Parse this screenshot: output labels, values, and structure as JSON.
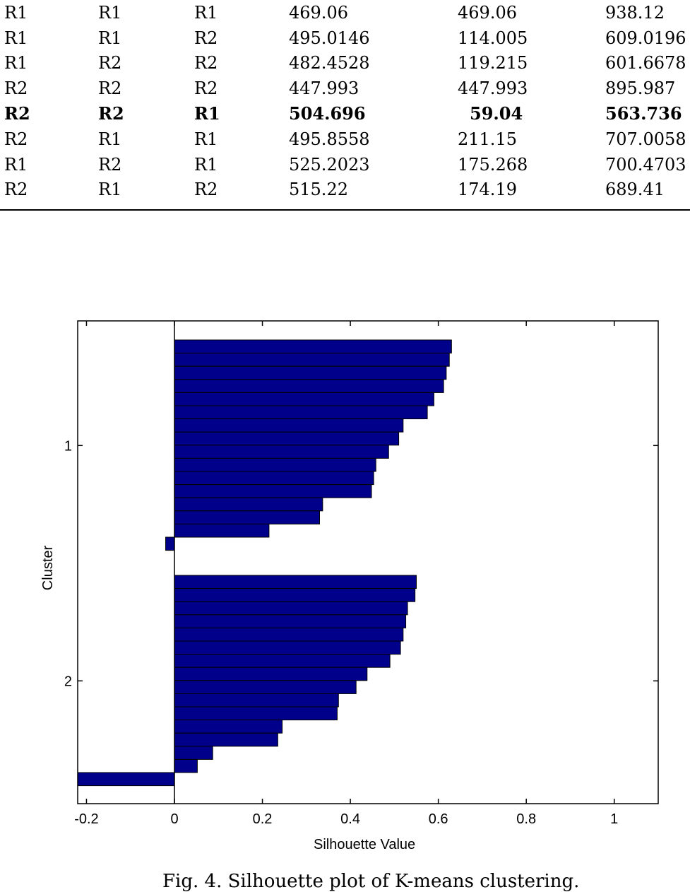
{
  "table": {
    "rows": [
      [
        "R1",
        "R1",
        "R1",
        "469.06",
        "469.06",
        "938.12"
      ],
      [
        "R1",
        "R1",
        "R2",
        "495.0146",
        "114.005",
        "609.0196"
      ],
      [
        "R1",
        "R2",
        "R2",
        "482.4528",
        "119.215",
        "601.6678"
      ],
      [
        "R2",
        "R2",
        "R2",
        "447.993",
        "447.993",
        "895.987"
      ],
      [
        "R2",
        "R2",
        "R1",
        "504.696",
        "59.04",
        "563.736"
      ],
      [
        "R2",
        "R1",
        "R1",
        "495.8558",
        "211.15",
        "707.0058"
      ],
      [
        "R1",
        "R2",
        "R1",
        "525.2023",
        "175.268",
        "700.4703"
      ],
      [
        "R2",
        "R1",
        "R2",
        "515.22",
        "174.19",
        "689.41"
      ]
    ],
    "bold_row_index": 4
  },
  "chart_data": {
    "type": "bar",
    "orientation": "horizontal",
    "title": "",
    "xlabel": "Silhouette Value",
    "ylabel": "Cluster",
    "xlim": [
      -0.22,
      1.1
    ],
    "xticks": [
      "-0.2",
      "0",
      "0.2",
      "0.4",
      "0.6",
      "0.8",
      "1"
    ],
    "yticks": [
      "1",
      "2"
    ],
    "bar_color": "#00008B",
    "grid": false,
    "legend": "none",
    "clusters": [
      {
        "name": "1",
        "values": [
          0.63,
          0.625,
          0.618,
          0.612,
          0.59,
          0.575,
          0.52,
          0.51,
          0.487,
          0.458,
          0.453,
          0.448,
          0.337,
          0.33,
          0.215,
          -0.02
        ]
      },
      {
        "name": "2",
        "values": [
          0.55,
          0.547,
          0.53,
          0.526,
          0.52,
          0.514,
          0.49,
          0.438,
          0.413,
          0.373,
          0.37,
          0.245,
          0.235,
          0.087,
          0.052,
          -0.22
        ]
      }
    ]
  },
  "caption": {
    "text": "Fig. 4. Silhouette plot of K-means clustering."
  }
}
